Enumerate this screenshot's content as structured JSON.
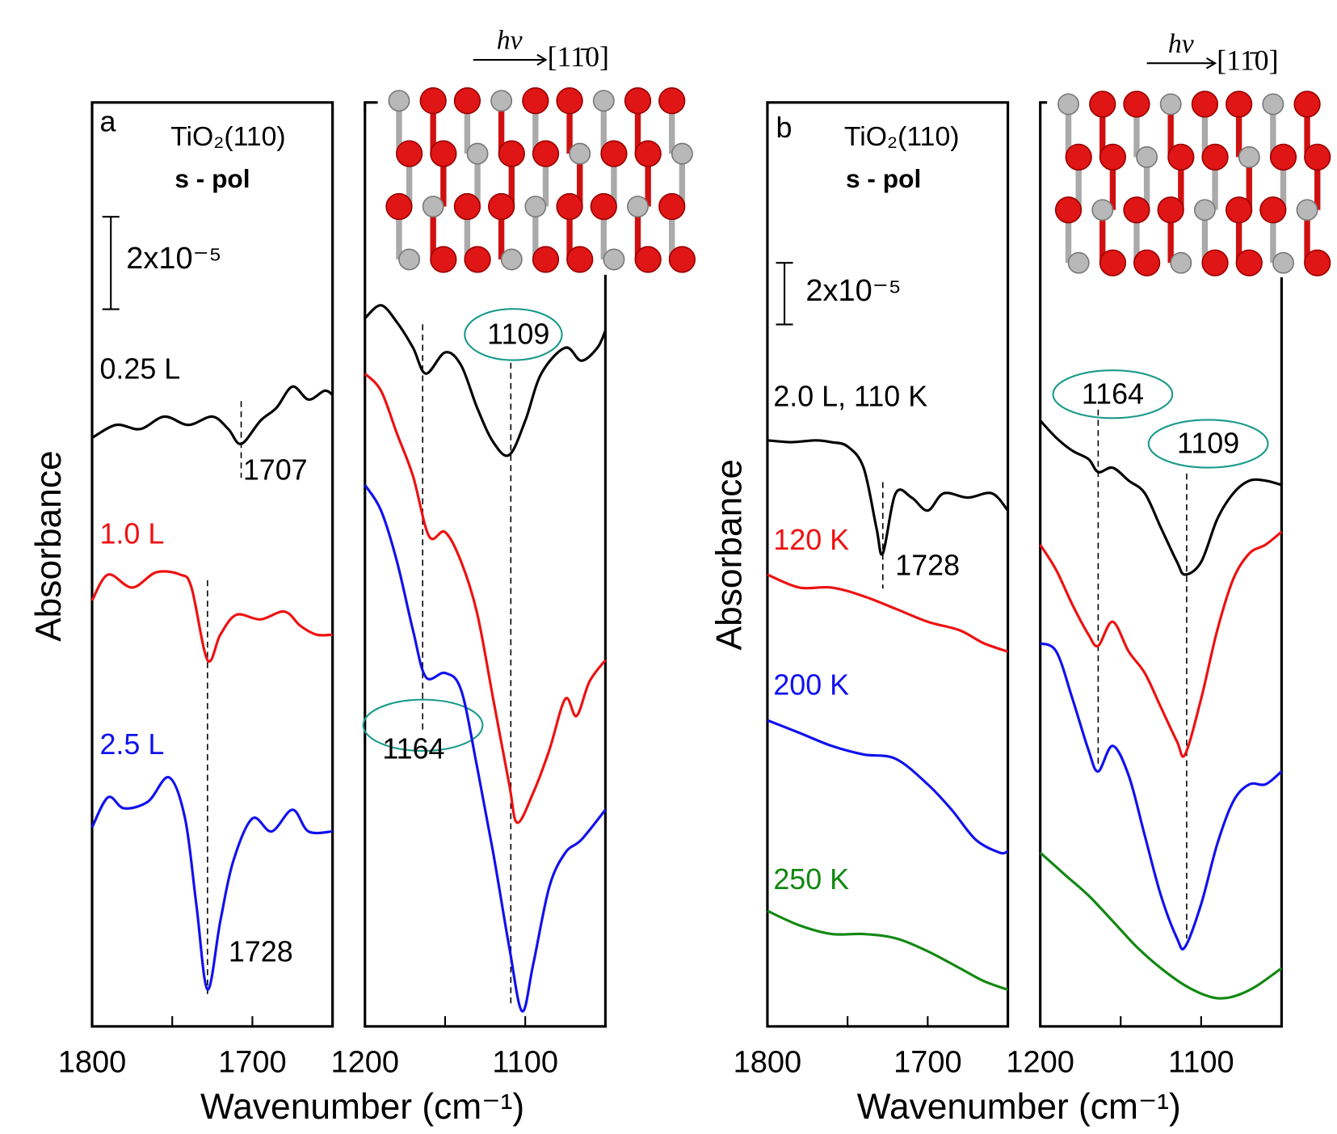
{
  "chart_data": [
    {
      "type": "line",
      "panel_label": "a",
      "sample": "TiO₂(110)",
      "polarization": "s - pol",
      "ylabel": "Absorbance",
      "xlabel": "Wavenumber (cm⁻¹)",
      "scale_bar": {
        "value": 2,
        "label": "2x10⁻⁵"
      },
      "xlim": [
        1800,
        1650
      ],
      "xticks": [
        1800,
        1700
      ],
      "xminor_ticks": [
        1750
      ],
      "ylim": [
        0,
        20
      ],
      "series": [
        {
          "name": "0.25 L",
          "color": "#000000",
          "x": [
            1800,
            1785,
            1770,
            1755,
            1740,
            1725,
            1715,
            1707,
            1695,
            1685,
            1675,
            1665,
            1655,
            1650
          ],
          "values": [
            12.74,
            13.02,
            12.93,
            13.2,
            13.02,
            13.2,
            12.93,
            12.61,
            13.11,
            13.39,
            13.85,
            13.57,
            13.76,
            13.67
          ]
        },
        {
          "name": "1.0 L",
          "color": "#ee1111",
          "x": [
            1800,
            1790,
            1775,
            1760,
            1745,
            1738,
            1728,
            1720,
            1710,
            1695,
            1680,
            1670,
            1660,
            1650
          ],
          "values": [
            9.22,
            9.78,
            9.5,
            9.83,
            9.78,
            9.5,
            7.93,
            8.48,
            8.91,
            8.81,
            8.98,
            8.67,
            8.48,
            8.48
          ]
        },
        {
          "name": "2.5 L",
          "color": "#1111ee",
          "x": [
            1800,
            1790,
            1780,
            1765,
            1752,
            1742,
            1735,
            1728,
            1720,
            1712,
            1700,
            1688,
            1675,
            1665,
            1650
          ],
          "values": [
            4.31,
            4.96,
            4.72,
            4.87,
            5.39,
            4.5,
            2.65,
            0.8,
            2.28,
            3.57,
            4.5,
            4.22,
            4.69,
            4.22,
            4.22
          ]
        }
      ],
      "annotations": [
        {
          "x": 1707
        },
        {
          "x": 1728
        }
      ]
    },
    {
      "type": "line",
      "inset_label": "hν",
      "inset_direction": "[11̄0]",
      "xlim": [
        1200,
        1050
      ],
      "xticks": [
        1200,
        1100
      ],
      "xminor_ticks": [
        1150
      ],
      "ylim": [
        0,
        20
      ],
      "series": [
        {
          "color": "#000000",
          "x": [
            1200,
            1190,
            1180,
            1170,
            1162,
            1150,
            1140,
            1130,
            1120,
            1110,
            1100,
            1090,
            1075,
            1065,
            1055,
            1050
          ],
          "values": [
            15.33,
            15.61,
            15.24,
            14.69,
            14.13,
            14.59,
            14.31,
            13.39,
            12.65,
            12.37,
            13.11,
            14.13,
            14.69,
            14.41,
            14.69,
            15.06
          ]
        },
        {
          "color": "#ee1111",
          "x": [
            1200,
            1190,
            1180,
            1170,
            1160,
            1150,
            1140,
            1130,
            1120,
            1110,
            1105,
            1095,
            1085,
            1075,
            1068,
            1060,
            1050
          ],
          "values": [
            14.13,
            13.76,
            12.83,
            11.91,
            10.61,
            10.7,
            10.06,
            8.94,
            7.09,
            5.24,
            4.41,
            5.06,
            5.98,
            7.09,
            6.72,
            7.46,
            7.93
          ]
        },
        {
          "color": "#1111ee",
          "x": [
            1200,
            1190,
            1180,
            1170,
            1162,
            1150,
            1140,
            1130,
            1120,
            1110,
            1102,
            1095,
            1085,
            1075,
            1065,
            1050
          ],
          "values": [
            11.72,
            11.17,
            10.06,
            8.57,
            7.56,
            7.65,
            7.28,
            5.61,
            3.76,
            1.72,
            0.33,
            1.35,
            3.02,
            3.76,
            4.04,
            4.69
          ]
        }
      ],
      "annotations": [
        {
          "x": 1164
        },
        {
          "x": 1109
        }
      ]
    },
    {
      "type": "line",
      "panel_label": "b",
      "sample": "TiO₂(110)",
      "polarization": "s - pol",
      "ylabel": "Absorbance",
      "xlabel": "Wavenumber (cm⁻¹)",
      "scale_bar": {
        "value": 2,
        "label": "2x10⁻⁵"
      },
      "xlim": [
        1800,
        1650
      ],
      "xticks": [
        1800,
        1700
      ],
      "xminor_ticks": [
        1750
      ],
      "ylim": [
        0,
        30
      ],
      "series": [
        {
          "name": "2.0 L, 110 K",
          "color": "#000000",
          "x": [
            1800,
            1785,
            1770,
            1760,
            1750,
            1740,
            1732,
            1728,
            1720,
            1710,
            1700,
            1690,
            1675,
            1660,
            1650
          ],
          "values": [
            19.03,
            18.97,
            19.03,
            18.97,
            18.83,
            18.14,
            16.19,
            15.36,
            17.31,
            17.17,
            16.75,
            17.31,
            17.17,
            17.31,
            16.75
          ]
        },
        {
          "name": "120 K",
          "color": "#ee1111",
          "x": [
            1800,
            1780,
            1760,
            1740,
            1720,
            1700,
            1680,
            1665,
            1650
          ],
          "values": [
            14.67,
            14.25,
            14.25,
            13.97,
            13.56,
            13.14,
            12.86,
            12.44,
            12.17
          ]
        },
        {
          "name": "200 K",
          "color": "#1111ee",
          "x": [
            1800,
            1780,
            1760,
            1740,
            1720,
            1700,
            1685,
            1670,
            1655,
            1650
          ],
          "values": [
            9.94,
            9.53,
            9.11,
            8.83,
            8.69,
            7.86,
            7.03,
            6.06,
            5.64,
            5.69
          ]
        },
        {
          "name": "250 K",
          "color": "#118811",
          "x": [
            1800,
            1780,
            1760,
            1740,
            1720,
            1700,
            1680,
            1665,
            1650
          ],
          "values": [
            3.75,
            3.28,
            3.0,
            3.0,
            2.86,
            2.44,
            1.89,
            1.47,
            1.19
          ]
        }
      ],
      "annotations": [
        {
          "x": 1728
        }
      ]
    },
    {
      "type": "line",
      "inset_label": "hν",
      "inset_direction": "[11̄0]",
      "xlim": [
        1200,
        1050
      ],
      "xticks": [
        1200,
        1100
      ],
      "xminor_ticks": [
        1150
      ],
      "ylim": [
        0,
        30
      ],
      "series": [
        {
          "color": "#000000",
          "x": [
            1200,
            1190,
            1180,
            1170,
            1164,
            1155,
            1145,
            1135,
            1125,
            1115,
            1110,
            1100,
            1090,
            1080,
            1070,
            1060,
            1050
          ],
          "values": [
            19.67,
            19.11,
            18.69,
            18.42,
            18.0,
            18.14,
            17.72,
            17.31,
            16.19,
            15.08,
            14.67,
            15.08,
            16.47,
            17.31,
            17.72,
            17.72,
            17.58
          ]
        },
        {
          "color": "#ee1111",
          "x": [
            1200,
            1190,
            1180,
            1170,
            1164,
            1155,
            1145,
            1135,
            1125,
            1115,
            1110,
            1100,
            1090,
            1080,
            1070,
            1060,
            1050
          ],
          "values": [
            15.64,
            14.81,
            13.69,
            12.72,
            12.36,
            13.14,
            12.17,
            11.47,
            10.36,
            9.25,
            8.83,
            10.64,
            12.86,
            14.53,
            15.36,
            15.64,
            16.06
          ]
        },
        {
          "color": "#1111ee",
          "x": [
            1200,
            1190,
            1180,
            1170,
            1164,
            1155,
            1145,
            1135,
            1125,
            1115,
            1110,
            1100,
            1090,
            1080,
            1070,
            1060,
            1050
          ],
          "values": [
            12.44,
            12.17,
            10.64,
            8.97,
            8.28,
            9.11,
            8.14,
            6.19,
            4.25,
            2.86,
            2.58,
            3.97,
            5.92,
            7.31,
            7.86,
            7.86,
            8.28
          ]
        },
        {
          "color": "#118811",
          "x": [
            1200,
            1185,
            1170,
            1155,
            1140,
            1125,
            1110,
            1095,
            1085,
            1075,
            1065,
            1050
          ],
          "values": [
            5.64,
            4.94,
            4.25,
            3.42,
            2.58,
            1.89,
            1.33,
            0.97,
            0.92,
            1.06,
            1.33,
            1.89
          ]
        }
      ],
      "annotations": [
        {
          "x": 1164
        },
        {
          "x": 1109
        }
      ]
    }
  ]
}
